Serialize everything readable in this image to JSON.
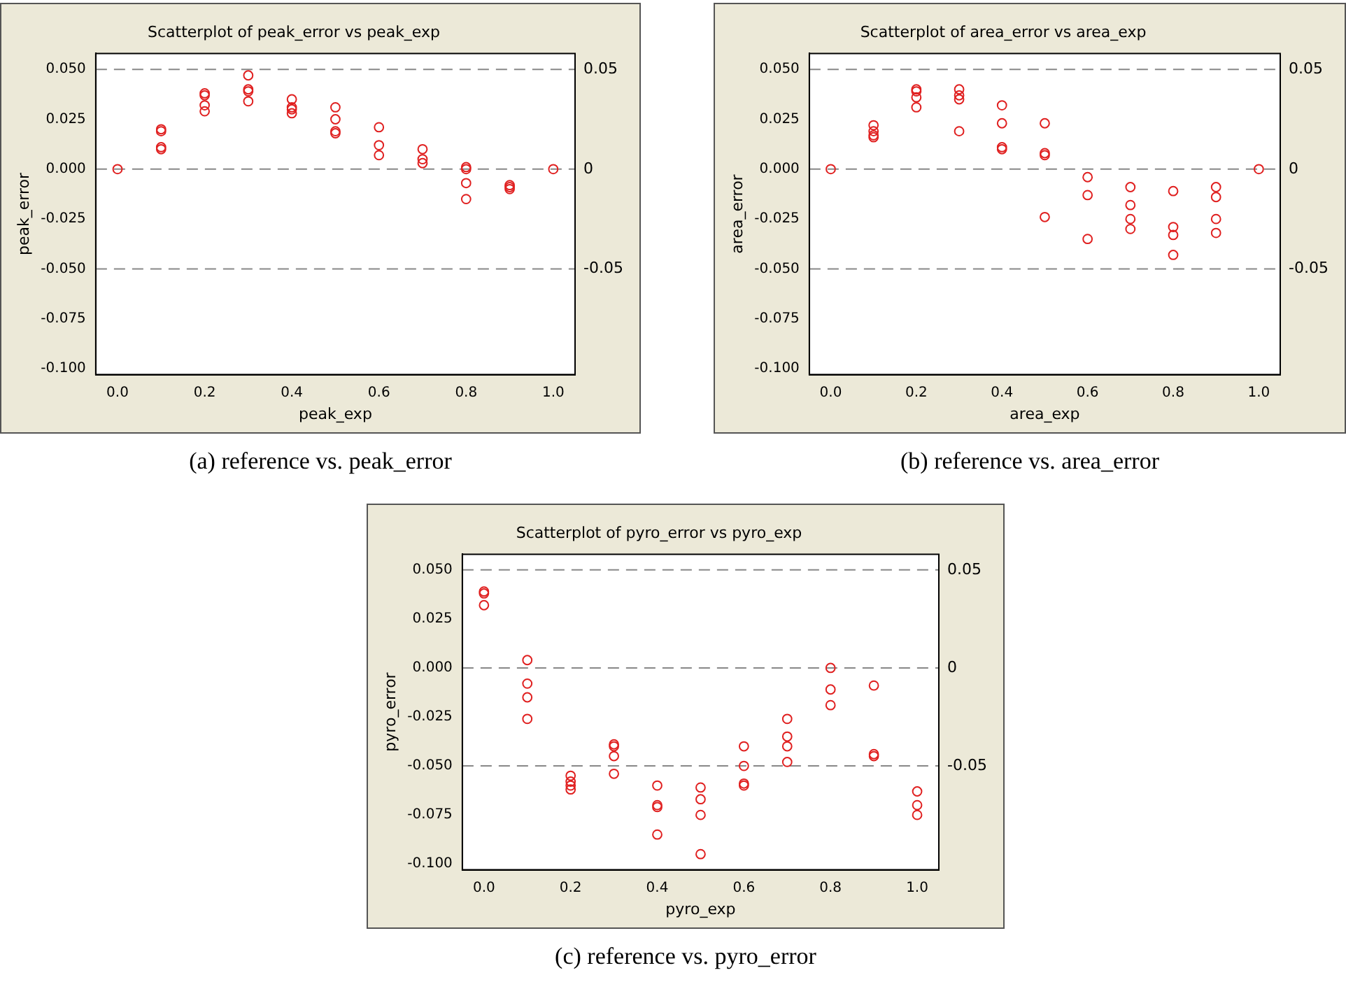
{
  "chart_data": [
    {
      "type": "scatter",
      "title": "Scatterplot of peak_error vs peak_exp",
      "xlabel": "peak_exp",
      "ylabel": "peak_error",
      "color": "#e02020",
      "marker": "circle",
      "x": [
        0,
        0.1,
        0.1,
        0.1,
        0.1,
        0.2,
        0.2,
        0.2,
        0.2,
        0.3,
        0.3,
        0.3,
        0.3,
        0.4,
        0.4,
        0.4,
        0.4,
        0.5,
        0.5,
        0.5,
        0.5,
        0.6,
        0.6,
        0.6,
        0.7,
        0.7,
        0.7,
        0.8,
        0.8,
        0.8,
        0.8,
        0.9,
        0.9,
        0.9,
        1.0
      ],
      "values": [
        0,
        0.02,
        0.019,
        0.011,
        0.01,
        0.038,
        0.037,
        0.032,
        0.029,
        0.047,
        0.04,
        0.039,
        0.034,
        0.035,
        0.031,
        0.03,
        0.028,
        0.031,
        0.025,
        0.019,
        0.018,
        0.021,
        0.012,
        0.007,
        0.01,
        0.005,
        0.003,
        0.001,
        0.0,
        -0.007,
        -0.015,
        -0.008,
        -0.009,
        -0.01,
        0
      ],
      "xlim": [
        -0.05,
        1.05
      ],
      "ylim": [
        -0.103,
        0.058
      ],
      "xticks": [
        {
          "value": 0,
          "label": "0.0"
        },
        {
          "value": 0.2,
          "label": "0.2"
        },
        {
          "value": 0.4,
          "label": "0.4"
        },
        {
          "value": 0.6,
          "label": "0.6"
        },
        {
          "value": 0.8,
          "label": "0.8"
        },
        {
          "value": 1,
          "label": "1.0"
        }
      ],
      "yticks": [
        {
          "value": 0.05,
          "label": "0.050"
        },
        {
          "value": 0.025,
          "label": "0.025"
        },
        {
          "value": 0,
          "label": "0.000"
        },
        {
          "value": -0.025,
          "label": "-0.025"
        },
        {
          "value": -0.05,
          "label": "-0.050"
        },
        {
          "value": -0.075,
          "label": "-0.075"
        },
        {
          "value": -0.1,
          "label": "-0.100"
        }
      ],
      "ref_lines": [
        {
          "axis": "y",
          "value": 0.05,
          "label": "0.05",
          "color": "#888888",
          "line_style": "dashed"
        },
        {
          "axis": "y",
          "value": 0,
          "label": "0",
          "color": "#888888",
          "line_style": "dashed"
        },
        {
          "axis": "y",
          "value": -0.05,
          "label": "-0.05",
          "color": "#888888",
          "line_style": "dashed"
        }
      ],
      "annotations": [
        "(a)  reference vs. peak_error"
      ]
    },
    {
      "type": "scatter",
      "title": "Scatterplot of area_error vs area_exp",
      "xlabel": "area_exp",
      "ylabel": "area_error",
      "color": "#e02020",
      "marker": "circle",
      "x": [
        0,
        0.1,
        0.1,
        0.1,
        0.1,
        0.2,
        0.2,
        0.2,
        0.2,
        0.3,
        0.3,
        0.3,
        0.3,
        0.4,
        0.4,
        0.4,
        0.4,
        0.5,
        0.5,
        0.5,
        0.5,
        0.6,
        0.6,
        0.6,
        0.7,
        0.7,
        0.7,
        0.7,
        0.8,
        0.8,
        0.8,
        0.8,
        0.9,
        0.9,
        0.9,
        0.9,
        1.0
      ],
      "values": [
        0,
        0.022,
        0.019,
        0.017,
        0.016,
        0.04,
        0.039,
        0.036,
        0.031,
        0.04,
        0.037,
        0.035,
        0.019,
        0.032,
        0.023,
        0.011,
        0.01,
        0.023,
        0.008,
        0.007,
        -0.024,
        -0.004,
        -0.013,
        -0.035,
        -0.009,
        -0.018,
        -0.025,
        -0.03,
        -0.011,
        -0.029,
        -0.033,
        -0.043,
        -0.009,
        -0.014,
        -0.025,
        -0.032,
        0
      ],
      "xlim": [
        -0.05,
        1.05
      ],
      "ylim": [
        -0.103,
        0.058
      ],
      "xticks": [
        {
          "value": 0,
          "label": "0.0"
        },
        {
          "value": 0.2,
          "label": "0.2"
        },
        {
          "value": 0.4,
          "label": "0.4"
        },
        {
          "value": 0.6,
          "label": "0.6"
        },
        {
          "value": 0.8,
          "label": "0.8"
        },
        {
          "value": 1,
          "label": "1.0"
        }
      ],
      "yticks": [
        {
          "value": 0.05,
          "label": "0.050"
        },
        {
          "value": 0.025,
          "label": "0.025"
        },
        {
          "value": 0,
          "label": "0.000"
        },
        {
          "value": -0.025,
          "label": "-0.025"
        },
        {
          "value": -0.05,
          "label": "-0.050"
        },
        {
          "value": -0.075,
          "label": "-0.075"
        },
        {
          "value": -0.1,
          "label": "-0.100"
        }
      ],
      "ref_lines": [
        {
          "axis": "y",
          "value": 0.05,
          "label": "0.05",
          "color": "#888888",
          "line_style": "dashed"
        },
        {
          "axis": "y",
          "value": 0,
          "label": "0",
          "color": "#888888",
          "line_style": "dashed"
        },
        {
          "axis": "y",
          "value": -0.05,
          "label": "-0.05",
          "color": "#888888",
          "line_style": "dashed"
        }
      ],
      "annotations": [
        "(b)  reference vs. area_error"
      ]
    },
    {
      "type": "scatter",
      "title": "Scatterplot of pyro_error vs pyro_exp",
      "xlabel": "pyro_exp",
      "ylabel": "pyro_error",
      "color": "#e02020",
      "marker": "circle",
      "x": [
        0,
        0,
        0,
        0.1,
        0.1,
        0.1,
        0.1,
        0.2,
        0.2,
        0.2,
        0.2,
        0.3,
        0.3,
        0.3,
        0.3,
        0.4,
        0.4,
        0.4,
        0.4,
        0.5,
        0.5,
        0.5,
        0.5,
        0.6,
        0.6,
        0.6,
        0.6,
        0.7,
        0.7,
        0.7,
        0.7,
        0.8,
        0.8,
        0.8,
        0.9,
        0.9,
        0.9,
        1.0,
        1.0,
        1.0
      ],
      "values": [
        0.039,
        0.038,
        0.032,
        0.004,
        -0.008,
        -0.015,
        -0.026,
        -0.055,
        -0.058,
        -0.06,
        -0.062,
        -0.039,
        -0.04,
        -0.045,
        -0.054,
        -0.06,
        -0.07,
        -0.071,
        -0.085,
        -0.061,
        -0.067,
        -0.075,
        -0.095,
        -0.04,
        -0.05,
        -0.059,
        -0.06,
        -0.026,
        -0.035,
        -0.04,
        -0.048,
        0.0,
        -0.011,
        -0.019,
        -0.009,
        -0.044,
        -0.045,
        -0.063,
        -0.07,
        -0.075
      ],
      "xlim": [
        -0.05,
        1.05
      ],
      "ylim": [
        -0.103,
        0.058
      ],
      "xticks": [
        {
          "value": 0,
          "label": "0.0"
        },
        {
          "value": 0.2,
          "label": "0.2"
        },
        {
          "value": 0.4,
          "label": "0.4"
        },
        {
          "value": 0.6,
          "label": "0.6"
        },
        {
          "value": 0.8,
          "label": "0.8"
        },
        {
          "value": 1,
          "label": "1.0"
        }
      ],
      "yticks": [
        {
          "value": 0.05,
          "label": "0.050"
        },
        {
          "value": 0.025,
          "label": "0.025"
        },
        {
          "value": 0,
          "label": "0.000"
        },
        {
          "value": -0.025,
          "label": "-0.025"
        },
        {
          "value": -0.05,
          "label": "-0.050"
        },
        {
          "value": -0.075,
          "label": "-0.075"
        },
        {
          "value": -0.1,
          "label": "-0.100"
        }
      ],
      "ref_lines": [
        {
          "axis": "y",
          "value": 0.05,
          "label": "0.05",
          "color": "#888888",
          "line_style": "dashed"
        },
        {
          "axis": "y",
          "value": 0,
          "label": "0",
          "color": "#888888",
          "line_style": "dashed"
        },
        {
          "axis": "y",
          "value": -0.05,
          "label": "-0.05",
          "color": "#888888",
          "line_style": "dashed"
        }
      ],
      "annotations": [
        "(c)  reference vs. pyro_error"
      ]
    }
  ]
}
